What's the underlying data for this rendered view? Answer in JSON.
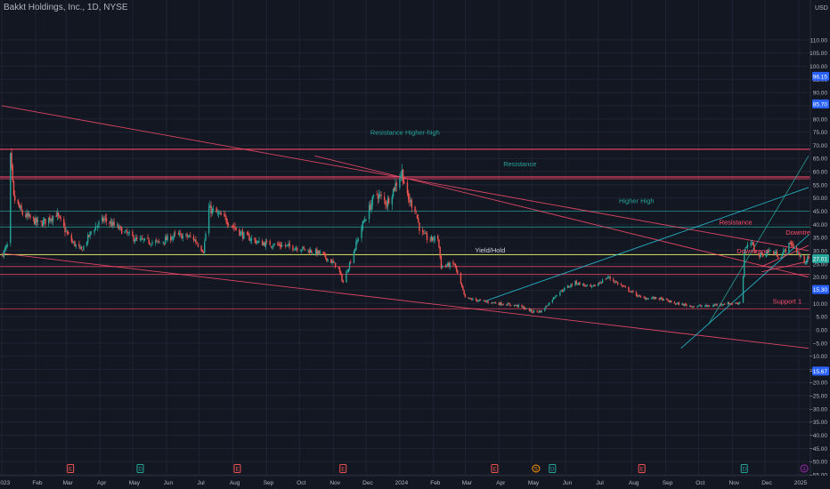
{
  "title": "Bakkt Holdings, Inc., 1D, NYSE",
  "colors": {
    "bg": "#131722",
    "grid": "#1f2433",
    "up": "#26a69a",
    "down": "#ef5350",
    "axis_text": "#b2b5be",
    "resistance": "#ff4d6d",
    "support": "#ff6b6b",
    "green_line": "#26a69a",
    "yellow_line": "#e6f06a",
    "cyan_line": "#26c6da"
  },
  "chart_data": {
    "type": "candlestick",
    "currency_label": "USD",
    "ylim": [
      -55,
      115
    ],
    "y_ticks": [
      110,
      105,
      100,
      95,
      90,
      85,
      80,
      75,
      70,
      65,
      60,
      55,
      50,
      45,
      40,
      35,
      30,
      25,
      20,
      15,
      10,
      5,
      0,
      -5,
      -10,
      -15,
      -20,
      -25,
      -30,
      -35,
      -40,
      -45,
      -50,
      -55
    ],
    "x_range": [
      "2023-01-01",
      "2025-01-10"
    ],
    "x_ticks": [
      {
        "date": "2023-01-01",
        "label": "2023"
      },
      {
        "date": "2023-02-01",
        "label": "Feb"
      },
      {
        "date": "2023-03-01",
        "label": "Mar"
      },
      {
        "date": "2023-04-01",
        "label": "Apr"
      },
      {
        "date": "2023-05-01",
        "label": "May"
      },
      {
        "date": "2023-06-01",
        "label": "Jun"
      },
      {
        "date": "2023-07-01",
        "label": "Jul"
      },
      {
        "date": "2023-08-01",
        "label": "Aug"
      },
      {
        "date": "2023-09-01",
        "label": "Sep"
      },
      {
        "date": "2023-10-01",
        "label": "Oct"
      },
      {
        "date": "2023-11-01",
        "label": "Nov"
      },
      {
        "date": "2023-12-01",
        "label": "Dec"
      },
      {
        "date": "2024-01-01",
        "label": "2024"
      },
      {
        "date": "2024-02-01",
        "label": "Feb"
      },
      {
        "date": "2024-03-01",
        "label": "Mar"
      },
      {
        "date": "2024-04-01",
        "label": "Apr"
      },
      {
        "date": "2024-05-01",
        "label": "May"
      },
      {
        "date": "2024-06-01",
        "label": "Jun"
      },
      {
        "date": "2024-07-01",
        "label": "Jul"
      },
      {
        "date": "2024-08-01",
        "label": "Aug"
      },
      {
        "date": "2024-09-01",
        "label": "Sep"
      },
      {
        "date": "2024-10-01",
        "label": "Oct"
      },
      {
        "date": "2024-11-01",
        "label": "Nov"
      },
      {
        "date": "2024-12-01",
        "label": "Dec"
      },
      {
        "date": "2025-01-01",
        "label": "2025"
      }
    ],
    "price_path": [
      [
        "2023-01-01",
        28
      ],
      [
        "2023-01-06",
        32
      ],
      [
        "2023-01-09",
        65
      ],
      [
        "2023-01-12",
        50
      ],
      [
        "2023-01-20",
        44
      ],
      [
        "2023-02-05",
        40
      ],
      [
        "2023-02-20",
        44
      ],
      [
        "2023-03-05",
        34
      ],
      [
        "2023-03-15",
        30
      ],
      [
        "2023-03-25",
        38
      ],
      [
        "2023-04-05",
        42
      ],
      [
        "2023-04-20",
        38
      ],
      [
        "2023-05-05",
        34
      ],
      [
        "2023-05-25",
        33
      ],
      [
        "2023-06-10",
        36
      ],
      [
        "2023-06-25",
        35
      ],
      [
        "2023-07-05",
        30
      ],
      [
        "2023-07-10",
        46
      ],
      [
        "2023-07-25",
        42
      ],
      [
        "2023-08-10",
        36
      ],
      [
        "2023-08-25",
        33
      ],
      [
        "2023-09-15",
        32
      ],
      [
        "2023-10-01",
        31
      ],
      [
        "2023-10-20",
        29
      ],
      [
        "2023-11-05",
        24
      ],
      [
        "2023-11-10",
        18
      ],
      [
        "2023-11-20",
        30
      ],
      [
        "2023-11-28",
        40
      ],
      [
        "2023-12-10",
        52
      ],
      [
        "2023-12-20",
        48
      ],
      [
        "2024-01-03",
        60
      ],
      [
        "2024-01-08",
        50
      ],
      [
        "2024-01-15",
        46
      ],
      [
        "2024-01-20",
        37
      ],
      [
        "2024-01-28",
        34
      ],
      [
        "2024-02-05",
        35
      ],
      [
        "2024-02-08",
        24
      ],
      [
        "2024-02-20",
        25
      ],
      [
        "2024-03-01",
        12
      ],
      [
        "2024-03-15",
        11
      ],
      [
        "2024-04-01",
        10
      ],
      [
        "2024-04-20",
        9
      ],
      [
        "2024-05-01",
        7
      ],
      [
        "2024-05-10",
        7
      ],
      [
        "2024-05-25",
        14
      ],
      [
        "2024-06-10",
        18
      ],
      [
        "2024-06-25",
        16
      ],
      [
        "2024-07-10",
        20
      ],
      [
        "2024-07-25",
        16
      ],
      [
        "2024-08-10",
        12
      ],
      [
        "2024-08-25",
        12
      ],
      [
        "2024-09-10",
        10
      ],
      [
        "2024-09-25",
        9
      ],
      [
        "2024-10-10",
        9
      ],
      [
        "2024-10-25",
        10
      ],
      [
        "2024-11-05",
        10
      ],
      [
        "2024-11-10",
        11
      ],
      [
        "2024-11-12",
        30
      ],
      [
        "2024-11-18",
        33
      ],
      [
        "2024-11-25",
        28
      ],
      [
        "2024-12-05",
        30
      ],
      [
        "2024-12-15",
        28
      ],
      [
        "2024-12-25",
        33
      ],
      [
        "2025-01-05",
        26
      ],
      [
        "2025-01-10",
        27
      ]
    ],
    "current_price": 27.0,
    "price_labels": [
      {
        "text": "96.15",
        "value": 96.15,
        "color": "#2962ff"
      },
      {
        "text": "85.70",
        "value": 85.7,
        "color": "#2962ff"
      },
      {
        "text": "27.01",
        "value": 27.01,
        "color": "#26a69a"
      },
      {
        "text": "15.30",
        "value": 15.3,
        "color": "#2962ff"
      },
      {
        "text": "−15.67",
        "value": -15.67,
        "color": "#2962ff"
      }
    ],
    "horizontal_levels": [
      {
        "value": 68.5,
        "color": "#ff4d6d",
        "width": 1.2
      },
      {
        "value": 58.0,
        "color": "#ff4d6d",
        "width": 1.2
      },
      {
        "value": 57.3,
        "color": "#ff4d6d",
        "width": 0.8
      },
      {
        "value": 45.0,
        "color": "#26a69a",
        "width": 0.8
      },
      {
        "value": 39.0,
        "color": "#26a69a",
        "width": 0.8
      },
      {
        "value": 28.5,
        "color": "#e6f06a",
        "width": 1.2
      },
      {
        "value": 24.0,
        "color": "#ff4d6d",
        "width": 0.8
      },
      {
        "value": 21.0,
        "color": "#ff4d6d",
        "width": 0.8
      },
      {
        "value": 8.0,
        "color": "#ff4d6d",
        "width": 0.8
      }
    ],
    "trend_lines": [
      {
        "from": [
          "2023-01-01",
          85
        ],
        "to": [
          "2025-01-10",
          30
        ],
        "color": "#ff4d6d"
      },
      {
        "from": [
          "2023-01-01",
          29
        ],
        "to": [
          "2025-01-10",
          -7
        ],
        "color": "#ff4d6d"
      },
      {
        "from": [
          "2023-10-15",
          66
        ],
        "to": [
          "2025-01-10",
          20
        ],
        "color": "#ff4d6d"
      },
      {
        "from": [
          "2024-03-20",
          11
        ],
        "to": [
          "2025-01-10",
          54
        ],
        "color": "#26c6da"
      },
      {
        "from": [
          "2024-09-15",
          -7
        ],
        "to": [
          "2025-01-10",
          36
        ],
        "color": "#26c6da"
      },
      {
        "from": [
          "2024-10-10",
          2
        ],
        "to": [
          "2025-01-10",
          66
        ],
        "color": "#26a69a"
      },
      {
        "from": [
          "2024-11-28",
          24
        ],
        "to": [
          "2025-01-10",
          32
        ],
        "color": "#ff4d6d"
      },
      {
        "from": [
          "2024-11-28",
          22
        ],
        "to": [
          "2025-01-10",
          26
        ],
        "color": "#ff4d6d"
      }
    ],
    "annotations": [
      {
        "text": "Resistance Higher-high",
        "date": "2023-12-05",
        "value": 74,
        "color": "#26a69a"
      },
      {
        "text": "Resistance",
        "date": "2024-04-05",
        "value": 62,
        "color": "#26a69a"
      },
      {
        "text": "Higher High",
        "date": "2024-07-20",
        "value": 48,
        "color": "#26a69a"
      },
      {
        "text": "Resistance",
        "date": "2024-10-20",
        "value": 40,
        "color": "#ff4d6d"
      },
      {
        "text": "Yield/Hold",
        "date": "2024-03-10",
        "value": 29.3,
        "color": "#d1d4dc"
      },
      {
        "text": "Downtrend",
        "date": "2024-12-20",
        "value": 36,
        "color": "#ff4d6d"
      },
      {
        "text": "Downtrend",
        "date": "2024-11-05",
        "value": 29,
        "color": "#ff4d6d"
      },
      {
        "text": "Support 1",
        "date": "2024-12-08",
        "value": 10,
        "color": "#ff4d6d"
      }
    ],
    "event_markers": [
      {
        "date": "2023-03-05",
        "letter": "E",
        "color": "#ef5350"
      },
      {
        "date": "2023-05-08",
        "letter": "D",
        "color": "#26a69a"
      },
      {
        "date": "2023-08-05",
        "letter": "E",
        "color": "#ef5350"
      },
      {
        "date": "2023-11-10",
        "letter": "E",
        "color": "#ef5350"
      },
      {
        "date": "2024-03-28",
        "letter": "E",
        "color": "#ef5350"
      },
      {
        "date": "2024-05-05",
        "letter": "S",
        "color": "#ff9800"
      },
      {
        "date": "2024-05-20",
        "letter": "D",
        "color": "#26a69a"
      },
      {
        "date": "2024-08-10",
        "letter": "E",
        "color": "#ef5350"
      },
      {
        "date": "2024-11-12",
        "letter": "D",
        "color": "#26a69a"
      },
      {
        "date": "2025-01-06",
        "letter": "4",
        "color": "#9c27b0"
      }
    ]
  }
}
